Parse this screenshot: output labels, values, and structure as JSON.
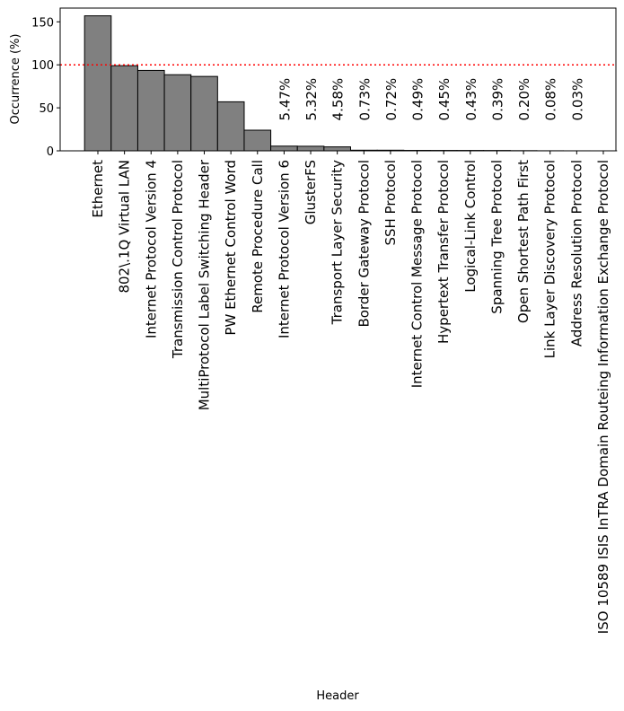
{
  "chart_data": {
    "type": "bar",
    "title": "",
    "xlabel": "Header",
    "ylabel": "Occurrence (%)",
    "ylim": [
      0,
      166
    ],
    "yticks": [
      0,
      50,
      100,
      150
    ],
    "reference_line": {
      "value": 100,
      "color": "#ff0000",
      "style": "dotted"
    },
    "bar_color": "#808080",
    "categories": [
      "Ethernet",
      "802\\.1Q Virtual LAN",
      "Internet Protocol Version 4",
      "Transmission Control Protocol",
      "MultiProtocol Label Switching Header",
      "PW Ethernet Control Word",
      "Remote Procedure Call",
      "Internet Protocol Version 6",
      "GlusterFS",
      "Transport Layer Security",
      "Border Gateway Protocol",
      "SSH Protocol",
      "Internet Control Message Protocol",
      "Hypertext Transfer Protocol",
      "Logical-Link Control",
      "Spanning Tree Protocol",
      "Open Shortest Path First",
      "Link Layer Discovery Protocol",
      "Address Resolution Protocol",
      "ISO 10589 ISIS InTRA Domain Routeing Information Exchange Protocol"
    ],
    "values": [
      157,
      99,
      93.5,
      88.5,
      86.5,
      57,
      24,
      5.47,
      5.32,
      4.58,
      0.73,
      0.72,
      0.49,
      0.45,
      0.43,
      0.39,
      0.2,
      0.08,
      0.03,
      0.01
    ],
    "data_labels": [
      null,
      null,
      null,
      null,
      null,
      null,
      null,
      "5.47%",
      "5.32%",
      "4.58%",
      "0.73%",
      "0.72%",
      "0.49%",
      "0.45%",
      "0.43%",
      "0.39%",
      "0.20%",
      "0.08%",
      "0.03%",
      null
    ]
  }
}
